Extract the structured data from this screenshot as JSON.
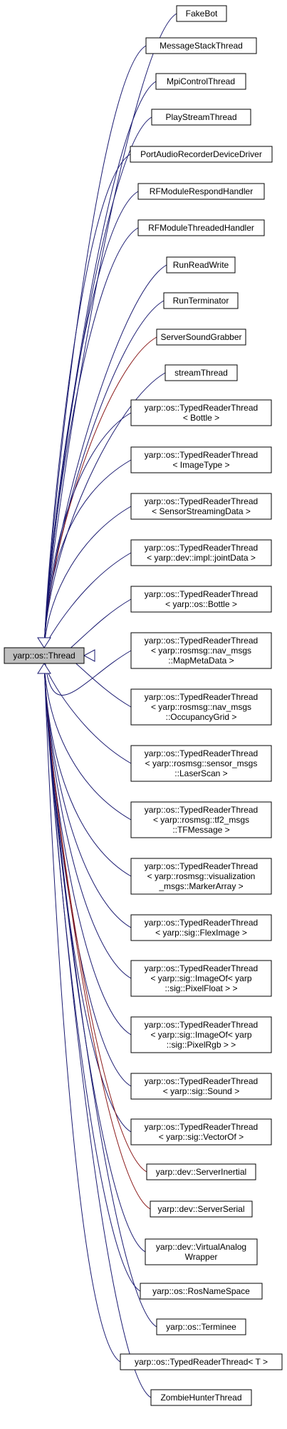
{
  "root": {
    "label": "yarp::os::Thread"
  },
  "colors": {
    "public": "#191970",
    "protected": "#8b1a1a",
    "root_fill": "#bfbfbf",
    "node_fill": "#ffffff"
  },
  "nodes": [
    {
      "id": "fakebot",
      "lines": [
        "FakeBot"
      ],
      "edge": "public"
    },
    {
      "id": "messagestackthread",
      "lines": [
        "MessageStackThread"
      ],
      "edge": "public"
    },
    {
      "id": "mpicontrolthread",
      "lines": [
        "MpiControlThread"
      ],
      "edge": "public"
    },
    {
      "id": "playstreamthread",
      "lines": [
        "PlayStreamThread"
      ],
      "edge": "public"
    },
    {
      "id": "portaudiorecorderdevicedriver",
      "lines": [
        "PortAudioRecorderDeviceDriver"
      ],
      "edge": "public"
    },
    {
      "id": "rfmodulerespondhandler",
      "lines": [
        "RFModuleRespondHandler"
      ],
      "edge": "public"
    },
    {
      "id": "rfmodulethreadedhandler",
      "lines": [
        "RFModuleThreadedHandler"
      ],
      "edge": "public"
    },
    {
      "id": "runreadwrite",
      "lines": [
        "RunReadWrite"
      ],
      "edge": "public"
    },
    {
      "id": "runterminator",
      "lines": [
        "RunTerminator"
      ],
      "edge": "public"
    },
    {
      "id": "serversoundgrabber",
      "lines": [
        "ServerSoundGrabber"
      ],
      "edge": "protected"
    },
    {
      "id": "streamthread",
      "lines": [
        "streamThread"
      ],
      "edge": "public"
    },
    {
      "id": "trt-bottle",
      "lines": [
        "yarp::os::TypedReaderThread",
        "< Bottle >"
      ],
      "edge": "public"
    },
    {
      "id": "trt-imagetype",
      "lines": [
        "yarp::os::TypedReaderThread",
        "< ImageType >"
      ],
      "edge": "public"
    },
    {
      "id": "trt-sensorstreamingdata",
      "lines": [
        "yarp::os::TypedReaderThread",
        "< SensorStreamingData >"
      ],
      "edge": "public"
    },
    {
      "id": "trt-jointdata",
      "lines": [
        "yarp::os::TypedReaderThread",
        "< yarp::dev::impl::jointData >"
      ],
      "edge": "public"
    },
    {
      "id": "trt-os-bottle",
      "lines": [
        "yarp::os::TypedReaderThread",
        "< yarp::os::Bottle >"
      ],
      "edge": "public"
    },
    {
      "id": "trt-mapmetadata",
      "lines": [
        "yarp::os::TypedReaderThread",
        "< yarp::rosmsg::nav_msgs",
        "::MapMetaData >"
      ],
      "edge": "public"
    },
    {
      "id": "trt-occupancygrid",
      "lines": [
        "yarp::os::TypedReaderThread",
        "< yarp::rosmsg::nav_msgs",
        "::OccupancyGrid >"
      ],
      "edge": "public"
    },
    {
      "id": "trt-laserscan",
      "lines": [
        "yarp::os::TypedReaderThread",
        "< yarp::rosmsg::sensor_msgs",
        "::LaserScan >"
      ],
      "edge": "public"
    },
    {
      "id": "trt-tfmessage",
      "lines": [
        "yarp::os::TypedReaderThread",
        "< yarp::rosmsg::tf2_msgs",
        "::TFMessage >"
      ],
      "edge": "public"
    },
    {
      "id": "trt-markerarray",
      "lines": [
        "yarp::os::TypedReaderThread",
        "< yarp::rosmsg::visualization",
        "_msgs::MarkerArray >"
      ],
      "edge": "public"
    },
    {
      "id": "trt-fleximage",
      "lines": [
        "yarp::os::TypedReaderThread",
        "< yarp::sig::FlexImage >"
      ],
      "edge": "public"
    },
    {
      "id": "trt-pixelfloat",
      "lines": [
        "yarp::os::TypedReaderThread",
        "< yarp::sig::ImageOf< yarp",
        "::sig::PixelFloat > >"
      ],
      "edge": "public"
    },
    {
      "id": "trt-pixelrgb",
      "lines": [
        "yarp::os::TypedReaderThread",
        "< yarp::sig::ImageOf< yarp",
        "::sig::PixelRgb > >"
      ],
      "edge": "public"
    },
    {
      "id": "trt-sound",
      "lines": [
        "yarp::os::TypedReaderThread",
        "< yarp::sig::Sound >"
      ],
      "edge": "public"
    },
    {
      "id": "trt-vectorof",
      "lines": [
        "yarp::os::TypedReaderThread",
        "< yarp::sig::VectorOf >"
      ],
      "edge": "public"
    },
    {
      "id": "serverinertial",
      "lines": [
        "yarp::dev::ServerInertial"
      ],
      "edge": "protected"
    },
    {
      "id": "serverserial",
      "lines": [
        "yarp::dev::ServerSerial"
      ],
      "edge": "protected"
    },
    {
      "id": "virtualanalogwrapper",
      "lines": [
        "yarp::dev::VirtualAnalog",
        "Wrapper"
      ],
      "edge": "public"
    },
    {
      "id": "rosnamespace",
      "lines": [
        "yarp::os::RosNameSpace"
      ],
      "edge": "public"
    },
    {
      "id": "terminee",
      "lines": [
        "yarp::os::Terminee"
      ],
      "edge": "public"
    },
    {
      "id": "trt-t",
      "lines": [
        "yarp::os::TypedReaderThread< T >"
      ],
      "edge": "public"
    },
    {
      "id": "zombiehunterthread",
      "lines": [
        "ZombieHunterThread"
      ],
      "edge": "public"
    }
  ]
}
